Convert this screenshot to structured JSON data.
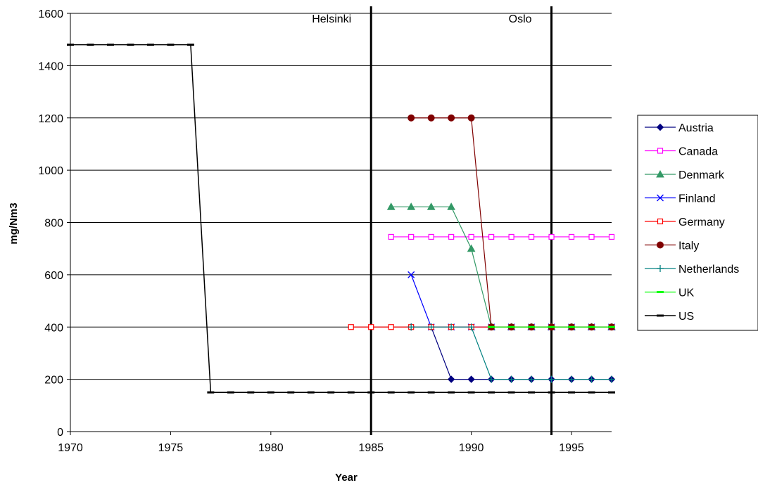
{
  "chart_data": {
    "type": "line",
    "title": "",
    "xlabel": "Year",
    "ylabel": "mg/Nm3",
    "xlim": [
      1970,
      1997
    ],
    "ylim": [
      0,
      1600
    ],
    "xticks": [
      1970,
      1975,
      1980,
      1985,
      1990,
      1995
    ],
    "yticks": [
      0,
      200,
      400,
      600,
      800,
      1000,
      1200,
      1400,
      1600
    ],
    "grid": "horizontal",
    "legend_position": "right",
    "annotations": [
      {
        "label": "Helsinki",
        "x": 1985
      },
      {
        "label": "Oslo",
        "x": 1994
      }
    ],
    "series": [
      {
        "name": "Austria",
        "color": "#000080",
        "marker": "diamond",
        "x": [
          1987,
          1988,
          1989,
          1990,
          1991,
          1992,
          1993,
          1994,
          1995,
          1996,
          1997
        ],
        "y": [
          400,
          400,
          200,
          200,
          200,
          200,
          200,
          200,
          200,
          200,
          200
        ]
      },
      {
        "name": "Canada",
        "color": "#ff00ff",
        "marker": "square-open",
        "x": [
          1986,
          1987,
          1988,
          1989,
          1990,
          1991,
          1992,
          1993,
          1994,
          1995,
          1996,
          1997
        ],
        "y": [
          745,
          745,
          745,
          745,
          745,
          745,
          745,
          745,
          745,
          745,
          745,
          745
        ]
      },
      {
        "name": "Denmark",
        "color": "#339966",
        "marker": "triangle",
        "x": [
          1986,
          1987,
          1988,
          1989,
          1990,
          1991,
          1992,
          1993,
          1994,
          1995,
          1996,
          1997
        ],
        "y": [
          860,
          860,
          860,
          860,
          700,
          400,
          400,
          400,
          400,
          400,
          400,
          400
        ]
      },
      {
        "name": "Finland",
        "color": "#0000ff",
        "marker": "x",
        "x": [
          1987,
          1988,
          1989,
          1990,
          1991,
          1992,
          1993,
          1994,
          1995,
          1996,
          1997
        ],
        "y": [
          600,
          400,
          400,
          400,
          400,
          400,
          400,
          400,
          400,
          400,
          400
        ]
      },
      {
        "name": "Germany",
        "color": "#ff0000",
        "marker": "square-open",
        "x": [
          1984,
          1985,
          1986,
          1987,
          1988,
          1989,
          1990,
          1991,
          1992,
          1993,
          1994,
          1995,
          1996,
          1997
        ],
        "y": [
          400,
          400,
          400,
          400,
          400,
          400,
          400,
          400,
          400,
          400,
          400,
          400,
          400,
          400
        ]
      },
      {
        "name": "Italy",
        "color": "#800000",
        "marker": "circle",
        "x": [
          1987,
          1988,
          1989,
          1990,
          1991,
          1992,
          1993,
          1994,
          1995,
          1996,
          1997
        ],
        "y": [
          1200,
          1200,
          1200,
          1200,
          400,
          400,
          400,
          400,
          400,
          400,
          400
        ]
      },
      {
        "name": "Netherlands",
        "color": "#008080",
        "marker": "plus",
        "x": [
          1987,
          1988,
          1989,
          1990,
          1991,
          1992,
          1993,
          1994,
          1995,
          1996,
          1997
        ],
        "y": [
          400,
          400,
          400,
          400,
          200,
          200,
          200,
          200,
          200,
          200,
          200
        ]
      },
      {
        "name": "UK",
        "color": "#00ff00",
        "marker": "dash",
        "x": [
          1991,
          1992,
          1993,
          1994,
          1995,
          1996,
          1997
        ],
        "y": [
          400,
          400,
          400,
          400,
          400,
          400,
          400
        ]
      },
      {
        "name": "US",
        "color": "#000000",
        "marker": "dash",
        "x": [
          1970,
          1971,
          1972,
          1973,
          1974,
          1975,
          1976,
          1977,
          1978,
          1979,
          1980,
          1981,
          1982,
          1983,
          1984,
          1985,
          1986,
          1987,
          1988,
          1989,
          1990,
          1991,
          1992,
          1993,
          1994,
          1995,
          1996,
          1997
        ],
        "y": [
          1480,
          1480,
          1480,
          1480,
          1480,
          1480,
          1480,
          150,
          150,
          150,
          150,
          150,
          150,
          150,
          150,
          150,
          150,
          150,
          150,
          150,
          150,
          150,
          150,
          150,
          150,
          150,
          150,
          150
        ]
      }
    ]
  }
}
